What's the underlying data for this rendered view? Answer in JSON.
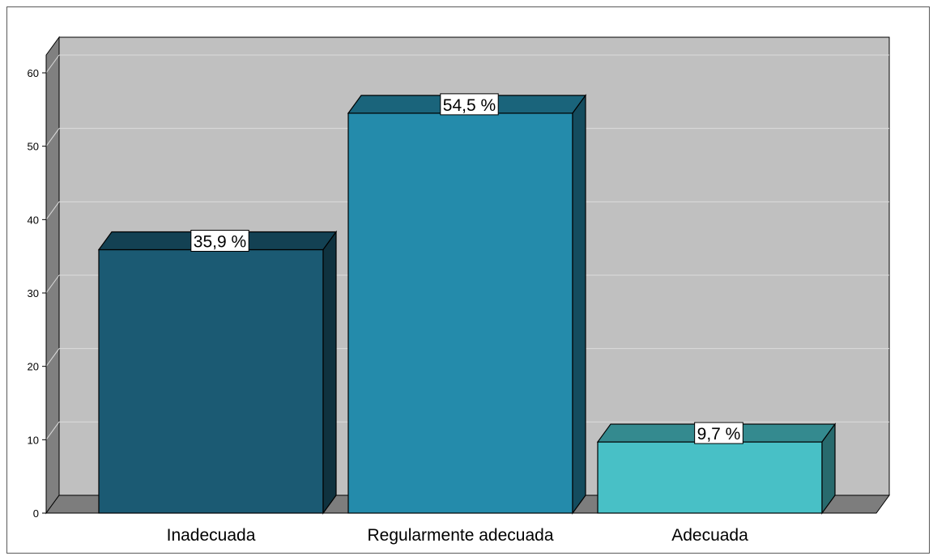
{
  "chart_data": {
    "type": "bar",
    "style": "3d",
    "categories": [
      "Inadecuada",
      "Regularmente adecuada",
      "Adecuada"
    ],
    "values": [
      35.9,
      54.5,
      9.7
    ],
    "data_labels": [
      "35,9 %",
      "54,5 %",
      "9,7 %"
    ],
    "bar_colors": [
      "#1b5a73",
      "#248bab",
      "#48c0c6"
    ],
    "ylim": [
      0,
      60
    ],
    "yticks": [
      0,
      10,
      20,
      30,
      40,
      50,
      60
    ],
    "grid": true,
    "title": "",
    "xlabel": "",
    "ylabel": ""
  }
}
